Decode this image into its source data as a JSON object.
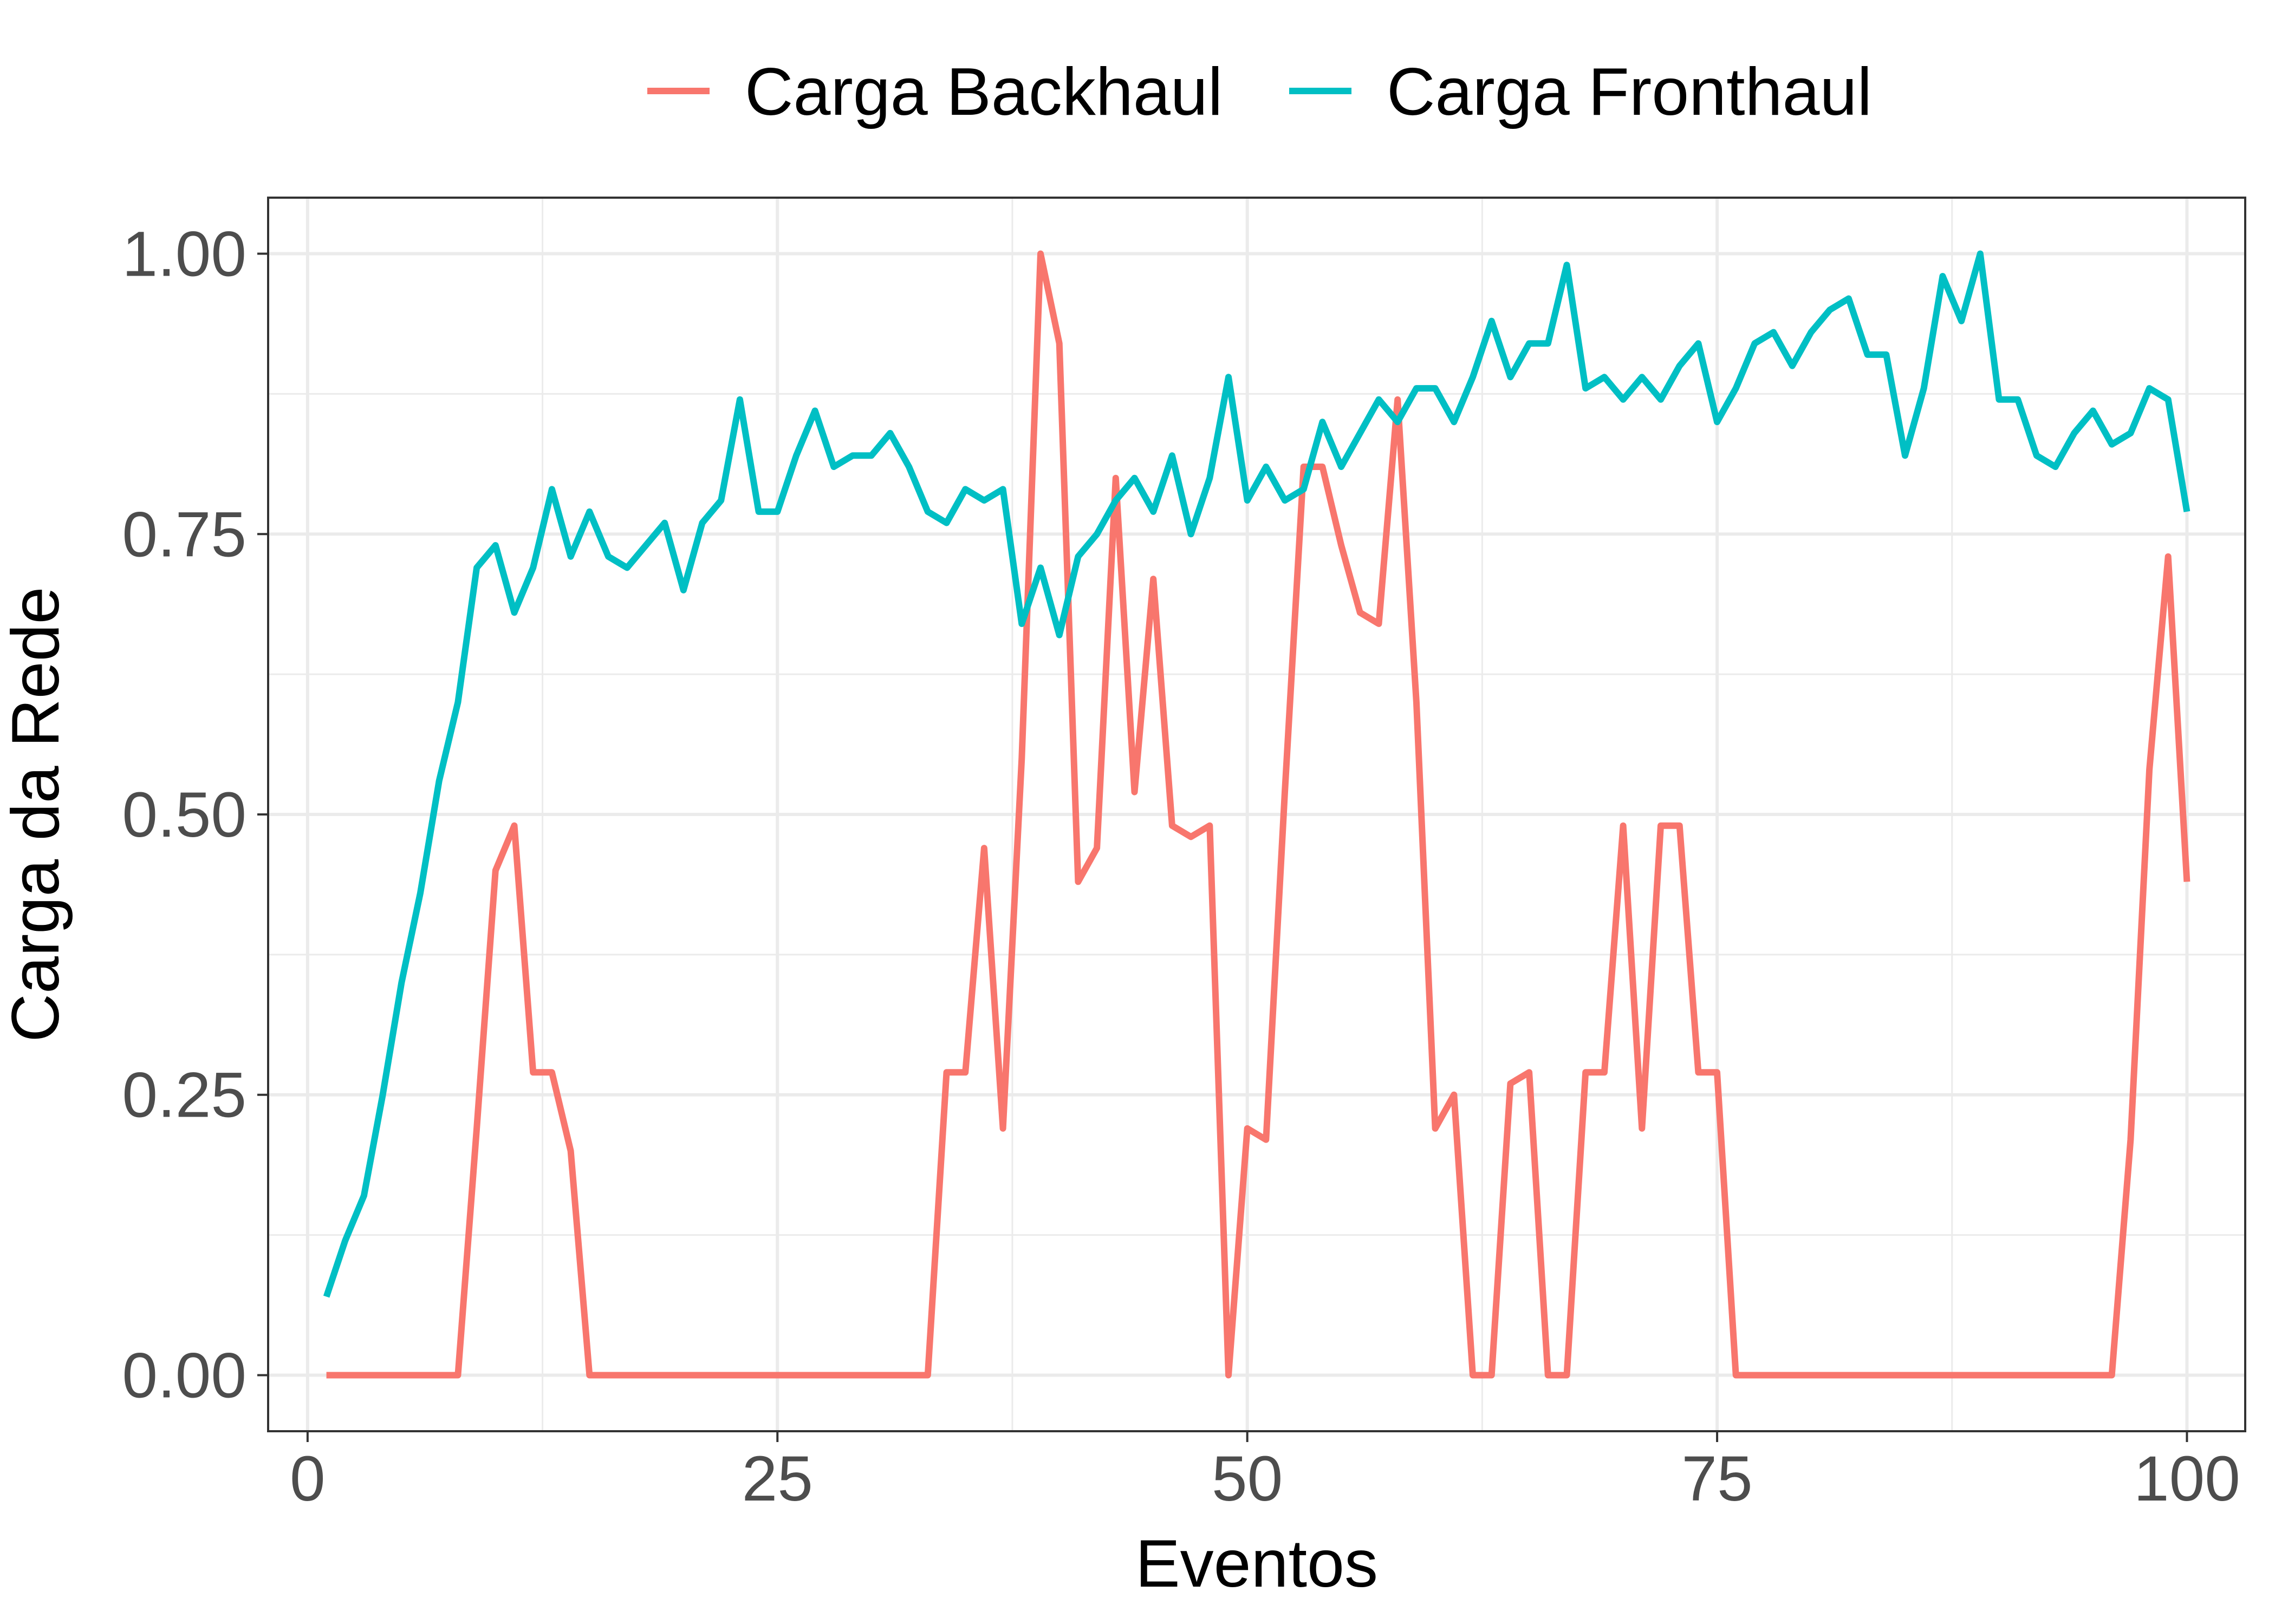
{
  "chart_data": {
    "type": "line",
    "title": "",
    "xlabel": "Eventos",
    "ylabel": "Carga da Rede",
    "xlim": [
      -2.1,
      103.1
    ],
    "ylim": [
      -0.05,
      1.05
    ],
    "x_ticks": [
      0,
      25,
      50,
      75,
      100
    ],
    "x_tick_labels": [
      "0",
      "25",
      "50",
      "75",
      "100"
    ],
    "y_ticks": [
      0,
      0.25,
      0.5,
      0.75,
      1
    ],
    "y_tick_labels": [
      "0.00",
      "0.25",
      "0.50",
      "0.75",
      "1.00"
    ],
    "grid": true,
    "legend_position": "top",
    "x": [
      1,
      2,
      3,
      4,
      5,
      6,
      7,
      8,
      9,
      10,
      11,
      12,
      13,
      14,
      15,
      16,
      17,
      18,
      19,
      20,
      21,
      22,
      23,
      24,
      25,
      26,
      27,
      28,
      29,
      30,
      31,
      32,
      33,
      34,
      35,
      36,
      37,
      38,
      39,
      40,
      41,
      42,
      43,
      44,
      45,
      46,
      47,
      48,
      49,
      50,
      51,
      52,
      53,
      54,
      55,
      56,
      57,
      58,
      59,
      60,
      61,
      62,
      63,
      64,
      65,
      66,
      67,
      68,
      69,
      70,
      71,
      72,
      73,
      74,
      75,
      76,
      77,
      78,
      79,
      80,
      81,
      82,
      83,
      84,
      85,
      86,
      87,
      88,
      89,
      90,
      91,
      92,
      93,
      94,
      95,
      96,
      97,
      98,
      99,
      100
    ],
    "series": [
      {
        "name": "Carga Backhaul",
        "color": "#F8766D",
        "values": [
          0,
          0,
          0,
          0,
          0,
          0,
          0,
          0,
          0.22,
          0.45,
          0.49,
          0.27,
          0.27,
          0.2,
          0,
          0,
          0,
          0,
          0,
          0,
          0,
          0,
          0,
          0,
          0,
          0,
          0,
          0,
          0,
          0,
          0,
          0,
          0,
          0.27,
          0.27,
          0.47,
          0.22,
          0.55,
          1.0,
          0.92,
          0.44,
          0.47,
          0.8,
          0.52,
          0.71,
          0.49,
          0.48,
          0.49,
          0,
          0.22,
          0.21,
          0.52,
          0.81,
          0.81,
          0.74,
          0.68,
          0.67,
          0.87,
          0.6,
          0.22,
          0.25,
          0,
          0,
          0.26,
          0.27,
          0,
          0,
          0.27,
          0.27,
          0.49,
          0.22,
          0.49,
          0.49,
          0.27,
          0.27,
          0,
          0,
          0,
          0,
          0,
          0,
          0,
          0,
          0,
          0,
          0,
          0,
          0,
          0,
          0,
          0,
          0,
          0,
          0,
          0,
          0,
          0.21,
          0.54,
          0.73,
          0.44
        ]
      },
      {
        "name": "Carga Fronthaul",
        "color": "#00BFC4",
        "values": [
          0.07,
          0.12,
          0.16,
          0.25,
          0.35,
          0.43,
          0.53,
          0.6,
          0.72,
          0.74,
          0.68,
          0.72,
          0.79,
          0.73,
          0.77,
          0.73,
          0.72,
          0.74,
          0.76,
          0.7,
          0.76,
          0.78,
          0.87,
          0.77,
          0.77,
          0.82,
          0.86,
          0.81,
          0.82,
          0.82,
          0.84,
          0.81,
          0.77,
          0.76,
          0.79,
          0.78,
          0.79,
          0.67,
          0.72,
          0.66,
          0.73,
          0.75,
          0.78,
          0.8,
          0.77,
          0.82,
          0.75,
          0.8,
          0.89,
          0.78,
          0.81,
          0.78,
          0.79,
          0.85,
          0.81,
          0.84,
          0.87,
          0.85,
          0.88,
          0.88,
          0.85,
          0.89,
          0.94,
          0.89,
          0.92,
          0.92,
          0.99,
          0.88,
          0.89,
          0.87,
          0.89,
          0.87,
          0.9,
          0.92,
          0.85,
          0.88,
          0.92,
          0.93,
          0.9,
          0.93,
          0.95,
          0.96,
          0.91,
          0.91,
          0.82,
          0.88,
          0.98,
          0.94,
          1.0,
          0.87,
          0.87,
          0.82,
          0.81,
          0.84,
          0.86,
          0.83,
          0.84,
          0.88,
          0.87,
          0.77
        ]
      }
    ]
  }
}
